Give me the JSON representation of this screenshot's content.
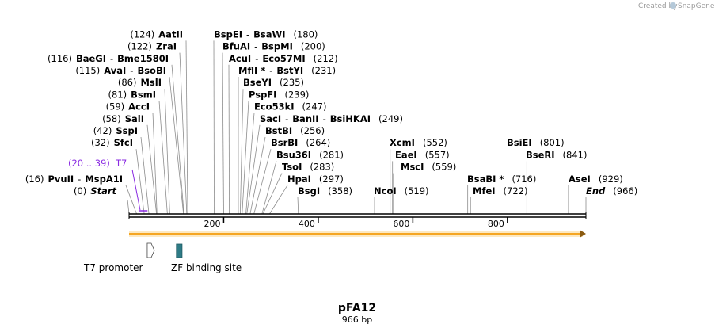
{
  "credit": {
    "prefix": "Created by",
    "brand": "SnapGene"
  },
  "title": {
    "name": "pFA12",
    "length": "966 bp"
  },
  "ticks": [
    {
      "bp": 200,
      "label": "200"
    },
    {
      "bp": 400,
      "label": "400"
    },
    {
      "bp": 600,
      "label": "600"
    },
    {
      "bp": 800,
      "label": "800"
    }
  ],
  "sites": [
    {
      "bp": 0,
      "parts": [
        "(0)",
        "Start"
      ],
      "kind": "end"
    },
    {
      "bp": 16,
      "parts": [
        "(16)",
        "PvuII",
        "-",
        "MspA1I"
      ]
    },
    {
      "bp": 32,
      "parts": [
        "(32)",
        "SfcI"
      ]
    },
    {
      "bp": 42,
      "parts": [
        "(42)",
        "SspI"
      ]
    },
    {
      "bp": 58,
      "parts": [
        "(58)",
        "SalI"
      ]
    },
    {
      "bp": 59,
      "parts": [
        "(59)",
        "AccI"
      ]
    },
    {
      "bp": 81,
      "parts": [
        "(81)",
        "BsmI"
      ]
    },
    {
      "bp": 86,
      "parts": [
        "(86)",
        "MslI"
      ]
    },
    {
      "bp": 115,
      "parts": [
        "(115)",
        "AvaI",
        "-",
        "BsoBI"
      ]
    },
    {
      "bp": 116,
      "parts": [
        "(116)",
        "BaeGI",
        "-",
        "Bme1580I"
      ]
    },
    {
      "bp": 122,
      "parts": [
        "(122)",
        "ZraI"
      ]
    },
    {
      "bp": 124,
      "parts": [
        "(124)",
        "AatII"
      ]
    },
    {
      "bp": 180,
      "parts": [
        "BspEI",
        "-",
        "BsaWI",
        "(180)"
      ]
    },
    {
      "bp": 200,
      "parts": [
        "BfuAI",
        "-",
        "BspMI",
        "(200)"
      ]
    },
    {
      "bp": 212,
      "parts": [
        "AcuI",
        "-",
        "Eco57MI",
        "(212)"
      ]
    },
    {
      "bp": 231,
      "parts": [
        "MflI *",
        "-",
        "BstYI",
        "(231)"
      ]
    },
    {
      "bp": 235,
      "parts": [
        "BseYI",
        "(235)"
      ]
    },
    {
      "bp": 239,
      "parts": [
        "PspFI",
        "(239)"
      ]
    },
    {
      "bp": 247,
      "parts": [
        "Eco53kI",
        "(247)"
      ]
    },
    {
      "bp": 249,
      "parts": [
        "SacI",
        "-",
        "BanII",
        "-",
        "BsiHKAI",
        "(249)"
      ]
    },
    {
      "bp": 256,
      "parts": [
        "BstBI",
        "(256)"
      ]
    },
    {
      "bp": 264,
      "parts": [
        "BsrBI",
        "(264)"
      ]
    },
    {
      "bp": 281,
      "parts": [
        "Bsu36I",
        "(281)"
      ]
    },
    {
      "bp": 283,
      "parts": [
        "TsoI",
        "(283)"
      ]
    },
    {
      "bp": 297,
      "parts": [
        "HpaI",
        "(297)"
      ]
    },
    {
      "bp": 358,
      "parts": [
        "BsgI",
        "(358)"
      ]
    },
    {
      "bp": 519,
      "parts": [
        "NcoI",
        "(519)"
      ]
    },
    {
      "bp": 552,
      "parts": [
        "XcmI",
        "(552)"
      ]
    },
    {
      "bp": 557,
      "parts": [
        "EaeI",
        "(557)"
      ]
    },
    {
      "bp": 559,
      "parts": [
        "MscI",
        "(559)"
      ]
    },
    {
      "bp": 716,
      "parts": [
        "BsaBI *",
        "(716)"
      ]
    },
    {
      "bp": 722,
      "parts": [
        "MfeI",
        "(722)"
      ]
    },
    {
      "bp": 801,
      "parts": [
        "BsiEI",
        "(801)"
      ]
    },
    {
      "bp": 841,
      "parts": [
        "BseRI",
        "(841)"
      ]
    },
    {
      "bp": 929,
      "parts": [
        "AseI",
        "(929)"
      ]
    },
    {
      "bp": 966,
      "parts": [
        "End",
        "(966)"
      ],
      "kind": "end"
    }
  ],
  "primer": {
    "range": "(20 .. 39)",
    "name": "T7",
    "start": 20,
    "end": 39,
    "color": "#8a2be2"
  },
  "features": [
    {
      "name": "T7 promoter",
      "start": 20,
      "end": 39,
      "color": "#ffffff"
    },
    {
      "name": "ZF binding site",
      "start": 90,
      "end": 102,
      "color": "#2e7b86"
    }
  ],
  "orf": {
    "start": 0,
    "end": 966,
    "color": "#f5a623"
  }
}
